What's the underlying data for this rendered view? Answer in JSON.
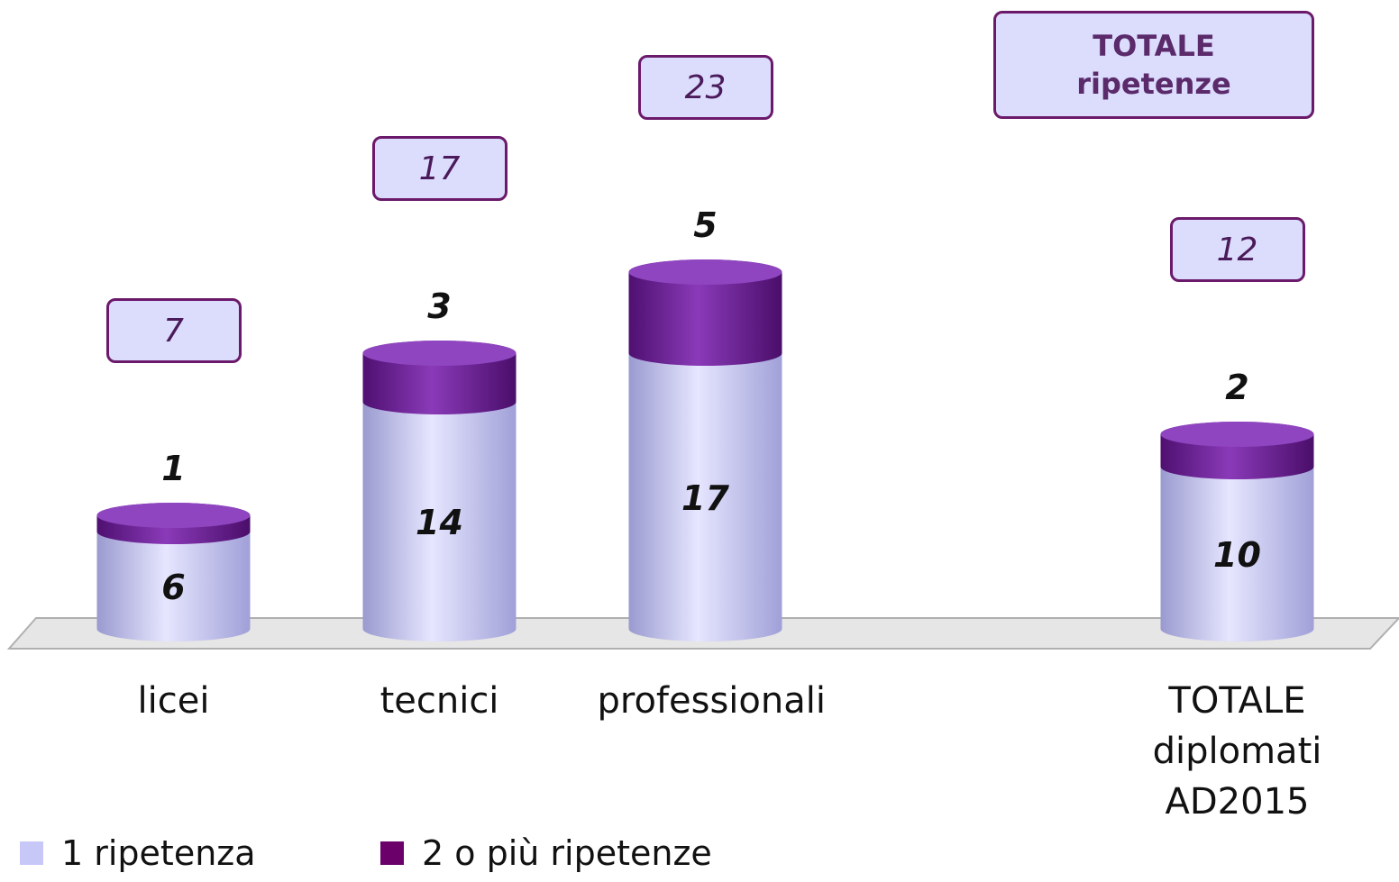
{
  "chart_data": {
    "type": "bar3d_stacked",
    "categories": [
      "licei",
      "tecnici",
      "professionali",
      null,
      "TOTALE diplomati AD2015"
    ],
    "series": [
      {
        "name": "1 ripetenza",
        "color": "#c8c8f8",
        "values": [
          6,
          14,
          17,
          null,
          10
        ]
      },
      {
        "name": "2 o più ripetenze",
        "color": "#6b006b",
        "values": [
          1,
          3,
          5,
          null,
          2
        ]
      }
    ],
    "totals": [
      7,
      17,
      23,
      null,
      12
    ],
    "totals_label": "TOTALE ripetenze",
    "legend": "bottom-left"
  }
}
